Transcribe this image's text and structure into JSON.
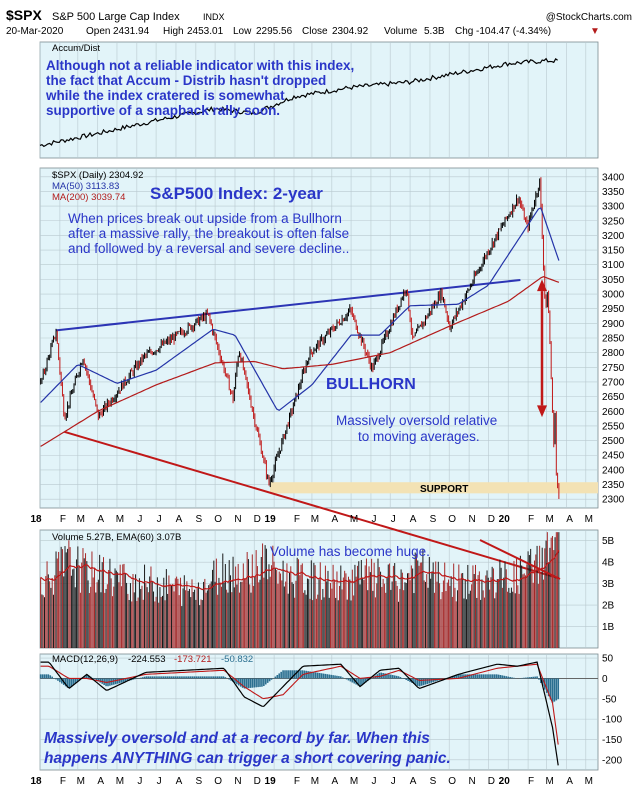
{
  "header": {
    "symbol": "$SPX",
    "name": "S&P 500 Large Cap Index",
    "exchange": "INDX",
    "watermark": "@StockCharts.com",
    "date": "20-Mar-2020",
    "open_label": "Open",
    "open": "2431.94",
    "high_label": "High",
    "high": "2453.01",
    "low_label": "Low",
    "low": "2295.56",
    "close_label": "Close",
    "close": "2304.92",
    "volume_label": "Volume",
    "volume": "5.3B",
    "chg_label": "Chg",
    "chg": "-104.47 (-4.34%)",
    "chg_arrow": "▼"
  },
  "colors": {
    "panel_bg": "#e2f4f9",
    "grid": "#b9c9cf",
    "price": "#000000",
    "ma50": "#2434a8",
    "ma200": "#b31b1b",
    "trend": "#2c35b5",
    "support_band": "#f3e2b4",
    "volume_bar": "#a52828",
    "macd_hist": "#2b6f90",
    "annotation": "#2a36c8"
  },
  "chart_data": [
    {
      "type": "line",
      "panel": "accum_dist",
      "legend": "Accum/Dist",
      "annotation": [
        "Although not a reliable indicator with this index,",
        "the fact that Accum - Distrib hasn't dropped",
        "while the index cratered is somewhat",
        "supportive of a snapback rally soon."
      ],
      "x": [
        "2018-01",
        "2018-04",
        "2018-07",
        "2018-10",
        "2018-12",
        "2019-02",
        "2019-05",
        "2019-08",
        "2019-11",
        "2020-01",
        "2020-03"
      ],
      "values": [
        0.05,
        0.18,
        0.32,
        0.45,
        0.4,
        0.58,
        0.68,
        0.74,
        0.86,
        0.94,
        0.97
      ]
    },
    {
      "type": "line",
      "panel": "price",
      "legend": [
        "$SPX (Daily) 2304.92",
        "MA(50) 3113.83",
        "MA(200) 3039.74"
      ],
      "title": "S&P500 Index: 2-year",
      "annotations": {
        "top": [
          "When prices break out upside from a Bullhorn",
          "after a massive rally, the breakout is often false",
          "and followed by a reversal and severe decline.."
        ],
        "pattern": "BULLHORN",
        "oversold": [
          "Massively oversold relative",
          "to moving averages."
        ],
        "support": "SUPPORT"
      },
      "y_ticks": [
        2300,
        2350,
        2400,
        2450,
        2500,
        2550,
        2600,
        2650,
        2700,
        2750,
        2800,
        2850,
        2900,
        2950,
        3000,
        3050,
        3100,
        3150,
        3200,
        3250,
        3300,
        3350,
        3400
      ],
      "ylim": [
        2270,
        3430
      ],
      "x_ticks": [
        "18",
        "F",
        "M",
        "A",
        "M",
        "J",
        "J",
        "A",
        "S",
        "O",
        "N",
        "D",
        "19",
        "F",
        "M",
        "A",
        "M",
        "J",
        "J",
        "A",
        "S",
        "O",
        "N",
        "D",
        "20",
        "F",
        "M",
        "A",
        "M"
      ],
      "series": [
        {
          "name": "$SPX",
          "x": [
            "2018-01-02",
            "2018-01-26",
            "2018-02-08",
            "2018-03-09",
            "2018-04-02",
            "2018-06-12",
            "2018-07-25",
            "2018-09-20",
            "2018-10-29",
            "2018-11-07",
            "2018-12-24",
            "2019-02-25",
            "2019-04-30",
            "2019-06-03",
            "2019-07-26",
            "2019-08-05",
            "2019-09-19",
            "2019-10-02",
            "2019-11-29",
            "2020-01-17",
            "2020-01-31",
            "2020-02-19",
            "2020-02-28",
            "2020-03-03",
            "2020-03-12",
            "2020-03-13",
            "2020-03-16",
            "2020-03-20"
          ],
          "values": [
            2695,
            2872,
            2580,
            2786,
            2582,
            2786,
            2846,
            2930,
            2641,
            2813,
            2351,
            2796,
            2945,
            2744,
            3025,
            2844,
            3006,
            2887,
            3141,
            3330,
            3225,
            3386,
            2954,
            3003,
            2481,
            2711,
            2386,
            2305
          ]
        },
        {
          "name": "MA(50)",
          "x": [
            "2018-01-02",
            "2018-03-01",
            "2018-05-01",
            "2018-07-01",
            "2018-09-28",
            "2018-11-01",
            "2019-01-07",
            "2019-03-01",
            "2019-05-01",
            "2019-06-15",
            "2019-08-01",
            "2019-10-15",
            "2019-12-01",
            "2020-01-15",
            "2020-02-20",
            "2020-03-20"
          ],
          "values": [
            2630,
            2760,
            2695,
            2740,
            2880,
            2860,
            2600,
            2690,
            2860,
            2860,
            2960,
            2965,
            3030,
            3180,
            3300,
            3114
          ]
        },
        {
          "name": "MA(200)",
          "x": [
            "2018-01-02",
            "2018-04-01",
            "2018-07-01",
            "2018-10-01",
            "2018-12-01",
            "2019-01-15",
            "2019-04-01",
            "2019-07-01",
            "2019-10-01",
            "2020-01-01",
            "2020-02-24",
            "2020-03-20"
          ],
          "values": [
            2480,
            2600,
            2690,
            2765,
            2770,
            2745,
            2760,
            2800,
            2890,
            2975,
            3060,
            3040
          ]
        }
      ]
    },
    {
      "type": "bar",
      "panel": "volume",
      "legend": "Volume 5.27B, EMA(60) 3.07B",
      "annotation": "Volume has become huge.",
      "y_ticks": [
        "1B",
        "2B",
        "3B",
        "4B",
        "5B"
      ],
      "ylim": [
        0,
        5.5
      ],
      "x": [
        "2018-01",
        "2018-02",
        "2018-03",
        "2018-04",
        "2018-05",
        "2018-06",
        "2018-07",
        "2018-08",
        "2018-09",
        "2018-10",
        "2018-11",
        "2018-12",
        "2019-01",
        "2019-02",
        "2019-03",
        "2019-04",
        "2019-05",
        "2019-06",
        "2019-07",
        "2019-08",
        "2019-09",
        "2019-10",
        "2019-11",
        "2019-12",
        "2020-01",
        "2020-02",
        "2020-03"
      ],
      "values": [
        3.3,
        4.0,
        3.5,
        3.4,
        3.1,
        3.0,
        2.9,
        2.7,
        2.9,
        3.7,
        3.5,
        4.0,
        3.4,
        3.2,
        3.1,
        3.0,
        3.3,
        3.2,
        3.0,
        3.7,
        3.1,
        3.1,
        3.0,
        3.2,
        3.3,
        3.9,
        5.3
      ]
    },
    {
      "type": "line",
      "panel": "macd",
      "legend": [
        "MACD(12,26,9)",
        "-224.553",
        "-173.721",
        "-50.832"
      ],
      "annotation": [
        "Massively oversold and at a record by far. When this",
        "happens ANYTHING can trigger a short covering panic."
      ],
      "y_ticks": [
        50,
        0,
        -50,
        -100,
        -150,
        -200
      ],
      "ylim": [
        -225,
        60
      ],
      "x": [
        "2018-01",
        "2018-02",
        "2018-03",
        "2018-04",
        "2018-06",
        "2018-08",
        "2018-10",
        "2018-11",
        "2018-12",
        "2019-01",
        "2019-02",
        "2019-04",
        "2019-05",
        "2019-06",
        "2019-07",
        "2019-08",
        "2019-10",
        "2019-12",
        "2020-01",
        "2020-02",
        "2020-03-10",
        "2020-03-20"
      ],
      "series": [
        {
          "name": "MACD",
          "values": [
            40,
            -25,
            10,
            -30,
            15,
            20,
            25,
            -45,
            -70,
            -20,
            30,
            35,
            -20,
            20,
            25,
            -25,
            10,
            35,
            30,
            40,
            -120,
            -224
          ]
        },
        {
          "name": "Signal",
          "values": [
            30,
            0,
            0,
            -10,
            10,
            15,
            20,
            -20,
            -50,
            -40,
            10,
            30,
            0,
            5,
            20,
            -5,
            0,
            25,
            30,
            35,
            -60,
            -174
          ]
        }
      ]
    }
  ]
}
